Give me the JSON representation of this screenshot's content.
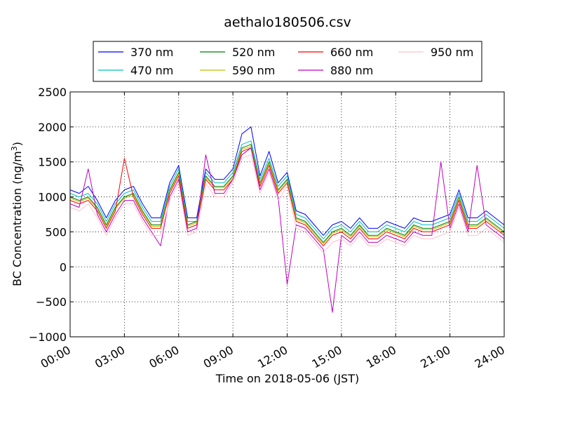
{
  "chart_data": {
    "type": "line",
    "title": "aethalo180506.csv",
    "xlabel": "Time on 2018-05-06 (JST)",
    "ylabel_main": "BC Concentration (ng/m",
    "ylabel_sup": "3",
    "ylabel_end": ")",
    "xlim_hours": [
      0,
      24
    ],
    "ylim": [
      -1000,
      2500
    ],
    "x_ticks": [
      {
        "value": 0,
        "label": "00:00"
      },
      {
        "value": 3,
        "label": "03:00"
      },
      {
        "value": 6,
        "label": "06:00"
      },
      {
        "value": 9,
        "label": "09:00"
      },
      {
        "value": 12,
        "label": "12:00"
      },
      {
        "value": 15,
        "label": "15:00"
      },
      {
        "value": 18,
        "label": "18:00"
      },
      {
        "value": 21,
        "label": "21:00"
      },
      {
        "value": 24,
        "label": "24:00"
      }
    ],
    "y_ticks": [
      {
        "value": -1000,
        "label": "−1000"
      },
      {
        "value": -500,
        "label": "−500"
      },
      {
        "value": 0,
        "label": "0"
      },
      {
        "value": 500,
        "label": "500"
      },
      {
        "value": 1000,
        "label": "1000"
      },
      {
        "value": 1500,
        "label": "1500"
      },
      {
        "value": 2000,
        "label": "2000"
      },
      {
        "value": 2500,
        "label": "2500"
      }
    ],
    "grid": true,
    "legend_position": "top-center",
    "x_hours": [
      0,
      0.5,
      1,
      1.5,
      2,
      2.5,
      3,
      3.5,
      4,
      4.5,
      5,
      5.5,
      6,
      6.5,
      7,
      7.5,
      8,
      8.5,
      9,
      9.5,
      10,
      10.5,
      11,
      11.5,
      12,
      12.5,
      13,
      13.5,
      14,
      14.5,
      15,
      15.5,
      16,
      16.5,
      17,
      17.5,
      18,
      18.5,
      19,
      19.5,
      20,
      20.5,
      21,
      21.5,
      22,
      22.5,
      23,
      23.5,
      24
    ],
    "series": [
      {
        "name": "370 nm",
        "color": "#0000ff",
        "values": [
          1100,
          1050,
          1150,
          950,
          700,
          950,
          1100,
          1150,
          900,
          700,
          700,
          1200,
          1450,
          700,
          700,
          1400,
          1250,
          1250,
          1400,
          1900,
          2000,
          1300,
          1650,
          1200,
          1350,
          800,
          750,
          600,
          450,
          600,
          650,
          550,
          700,
          550,
          550,
          650,
          600,
          550,
          700,
          650,
          650,
          700,
          750,
          1100,
          700,
          700,
          800,
          700,
          600
        ]
      },
      {
        "name": "470 nm",
        "color": "#00bfbf",
        "values": [
          1050,
          1000,
          1050,
          900,
          650,
          900,
          1050,
          1100,
          850,
          650,
          650,
          1150,
          1400,
          650,
          650,
          1350,
          1200,
          1200,
          1350,
          1750,
          1800,
          1250,
          1550,
          1150,
          1300,
          750,
          700,
          550,
          400,
          550,
          600,
          500,
          650,
          500,
          500,
          600,
          550,
          500,
          650,
          600,
          600,
          650,
          700,
          1050,
          650,
          650,
          750,
          650,
          550
        ]
      },
      {
        "name": "520 nm",
        "color": "#008000",
        "values": [
          1000,
          950,
          1000,
          850,
          600,
          850,
          1000,
          1050,
          800,
          600,
          600,
          1100,
          1350,
          600,
          650,
          1300,
          1150,
          1150,
          1300,
          1700,
          1750,
          1200,
          1500,
          1100,
          1250,
          700,
          650,
          500,
          350,
          500,
          550,
          450,
          600,
          450,
          450,
          550,
          500,
          450,
          600,
          550,
          550,
          600,
          650,
          1000,
          600,
          600,
          700,
          600,
          500
        ]
      },
      {
        "name": "590 nm",
        "color": "#bfbf00",
        "values": [
          980,
          930,
          980,
          830,
          580,
          830,
          980,
          1030,
          780,
          580,
          580,
          1080,
          1330,
          580,
          630,
          1280,
          1130,
          1130,
          1280,
          1680,
          1720,
          1180,
          1480,
          1080,
          1230,
          680,
          630,
          480,
          330,
          480,
          530,
          430,
          580,
          430,
          430,
          530,
          480,
          430,
          580,
          530,
          530,
          580,
          630,
          980,
          580,
          580,
          680,
          580,
          480
        ]
      },
      {
        "name": "660 nm",
        "color": "#ff0000",
        "values": [
          950,
          900,
          950,
          800,
          550,
          800,
          1550,
          1000,
          750,
          550,
          550,
          1050,
          1300,
          550,
          600,
          1250,
          1100,
          1100,
          1250,
          1650,
          1700,
          1150,
          1450,
          1050,
          1200,
          650,
          600,
          450,
          300,
          450,
          500,
          400,
          550,
          400,
          400,
          500,
          450,
          400,
          550,
          500,
          500,
          550,
          600,
          950,
          550,
          550,
          650,
          550,
          450
        ]
      },
      {
        "name": "880 nm",
        "color": "#bf00bf",
        "values": [
          900,
          850,
          1400,
          750,
          500,
          750,
          950,
          950,
          700,
          500,
          300,
          1000,
          1250,
          500,
          550,
          1600,
          1050,
          1050,
          1250,
          1600,
          1700,
          1100,
          1400,
          1000,
          -250,
          600,
          550,
          400,
          250,
          -650,
          450,
          350,
          500,
          350,
          350,
          450,
          400,
          350,
          500,
          450,
          450,
          1500,
          550,
          900,
          500,
          1450,
          600,
          500,
          400
        ]
      },
      {
        "name": "950 nm",
        "color": "#ffc0cb",
        "values": [
          850,
          800,
          900,
          700,
          450,
          700,
          900,
          900,
          650,
          450,
          450,
          950,
          1200,
          450,
          500,
          1200,
          1000,
          1000,
          1200,
          1550,
          1600,
          1050,
          1350,
          950,
          1150,
          550,
          500,
          350,
          200,
          350,
          400,
          300,
          450,
          300,
          300,
          400,
          350,
          300,
          450,
          400,
          400,
          450,
          500,
          850,
          450,
          450,
          550,
          450,
          350
        ]
      }
    ]
  }
}
